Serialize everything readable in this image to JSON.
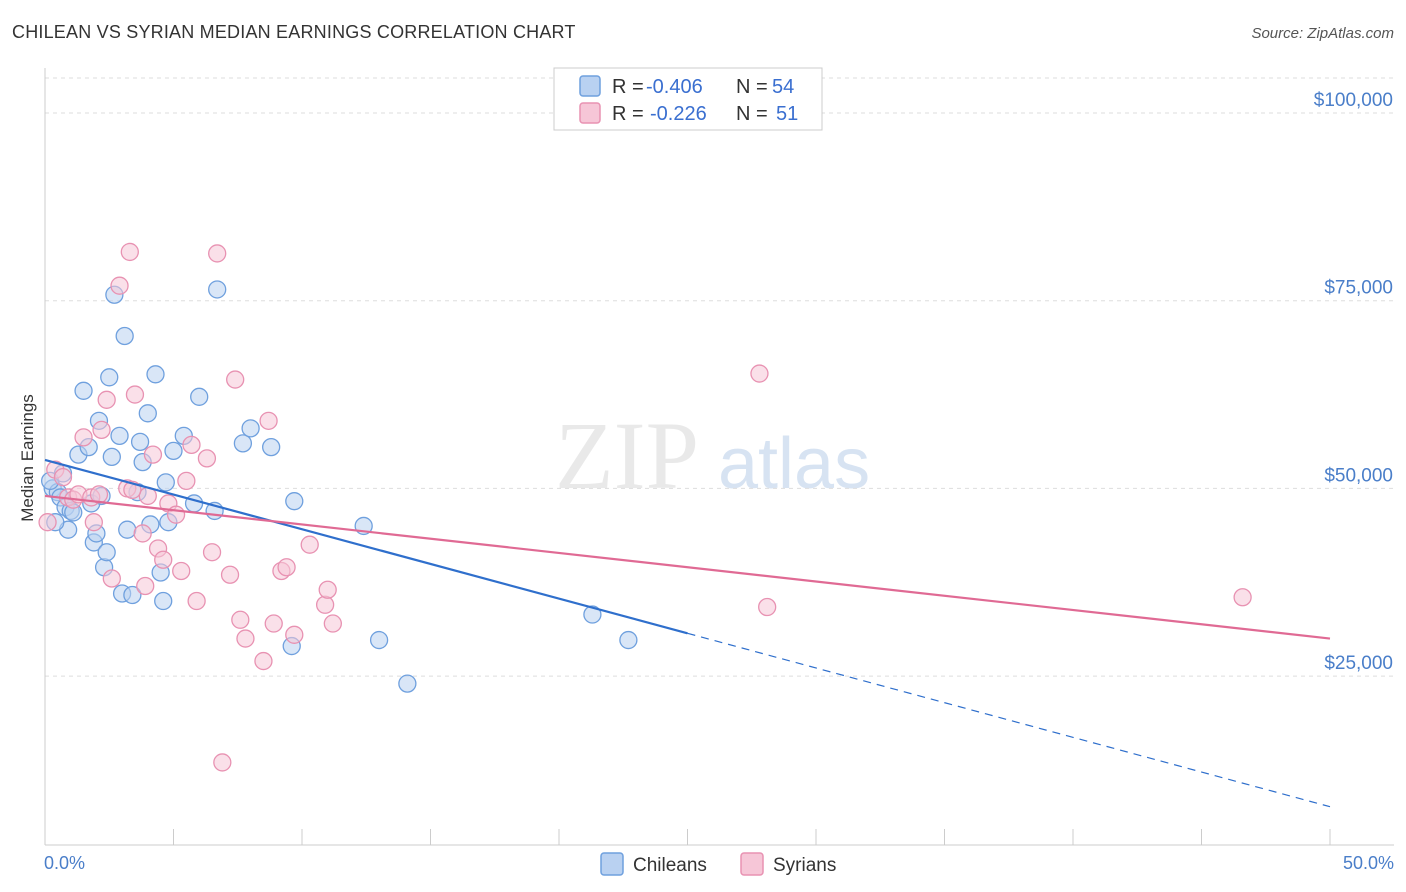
{
  "chart_data": {
    "type": "scatter",
    "title": "CHILEAN VS SYRIAN MEDIAN EARNINGS CORRELATION CHART",
    "source": "Source: ZipAtlas.com",
    "xlabel": "",
    "ylabel": "Median Earnings",
    "xlim": [
      0,
      50
    ],
    "ylim": [
      2500,
      106000
    ],
    "x_tick_labels": [
      "0.0%",
      "50.0%"
    ],
    "y_ticks": [
      {
        "value": 25000,
        "label": "$25,000"
      },
      {
        "value": 50000,
        "label": "$50,000"
      },
      {
        "value": 75000,
        "label": "$75,000"
      },
      {
        "value": 100000,
        "label": "$100,000"
      }
    ],
    "watermark": {
      "part1": "ZIP",
      "part2": "atlas"
    },
    "legend": {
      "rows": [
        {
          "r_label": "R =",
          "r_value": "-0.406",
          "n_label": "N =",
          "n_value": "54",
          "series": "Chileans"
        },
        {
          "r_label": "R =",
          "r_value": "-0.226",
          "n_label": "N =",
          "n_value": "51",
          "series": "Syrians"
        }
      ]
    },
    "series": [
      {
        "name": "Chileans",
        "color": "#6fa0de",
        "fill": "#b9d1f1",
        "line_color": "#2f6fcc",
        "trend": {
          "x0": 0,
          "y0": 53800,
          "x1": 25,
          "y1": 30700,
          "x_dash_end": 50,
          "y_dash_end": 7600
        },
        "points": [
          [
            0.3,
            50000
          ],
          [
            0.5,
            49500
          ],
          [
            0.6,
            48800
          ],
          [
            0.8,
            47500
          ],
          [
            0.9,
            44500
          ],
          [
            1.0,
            47000
          ],
          [
            1.1,
            46800
          ],
          [
            1.3,
            54500
          ],
          [
            1.5,
            63000
          ],
          [
            1.7,
            55500
          ],
          [
            1.8,
            48000
          ],
          [
            1.9,
            42800
          ],
          [
            2.0,
            44000
          ],
          [
            2.1,
            59000
          ],
          [
            2.2,
            49000
          ],
          [
            2.3,
            39500
          ],
          [
            2.4,
            41500
          ],
          [
            2.5,
            64800
          ],
          [
            2.6,
            54200
          ],
          [
            2.7,
            75800
          ],
          [
            2.9,
            57000
          ],
          [
            3.0,
            36000
          ],
          [
            3.1,
            70300
          ],
          [
            3.2,
            44500
          ],
          [
            3.4,
            35800
          ],
          [
            3.6,
            49500
          ],
          [
            3.7,
            56200
          ],
          [
            3.8,
            53500
          ],
          [
            4.0,
            60000
          ],
          [
            4.1,
            45200
          ],
          [
            4.3,
            65200
          ],
          [
            4.5,
            38800
          ],
          [
            4.6,
            35000
          ],
          [
            4.7,
            50800
          ],
          [
            4.8,
            45500
          ],
          [
            5.0,
            55000
          ],
          [
            5.4,
            57000
          ],
          [
            5.8,
            48000
          ],
          [
            6.0,
            62200
          ],
          [
            6.6,
            47000
          ],
          [
            6.7,
            76500
          ],
          [
            7.7,
            56000
          ],
          [
            8.0,
            58000
          ],
          [
            8.8,
            55500
          ],
          [
            9.6,
            29000
          ],
          [
            9.7,
            48300
          ],
          [
            12.4,
            45000
          ],
          [
            13.0,
            29800
          ],
          [
            14.1,
            24000
          ],
          [
            21.3,
            33200
          ],
          [
            22.7,
            29800
          ],
          [
            0.4,
            45500
          ],
          [
            0.2,
            51000
          ],
          [
            0.7,
            52000
          ]
        ]
      },
      {
        "name": "Syrians",
        "color": "#e892b2",
        "fill": "#f6c6d7",
        "line_color": "#e06a94",
        "trend": {
          "x0": 0,
          "y0": 49000,
          "x1": 50,
          "y1": 30000
        },
        "points": [
          [
            0.1,
            45500
          ],
          [
            0.4,
            52500
          ],
          [
            0.7,
            51500
          ],
          [
            0.9,
            48800
          ],
          [
            1.1,
            48500
          ],
          [
            1.3,
            49200
          ],
          [
            1.5,
            56800
          ],
          [
            1.8,
            48800
          ],
          [
            1.9,
            45500
          ],
          [
            2.1,
            49200
          ],
          [
            2.2,
            57800
          ],
          [
            2.4,
            61800
          ],
          [
            2.6,
            38000
          ],
          [
            2.9,
            77000
          ],
          [
            3.2,
            50000
          ],
          [
            3.3,
            81500
          ],
          [
            3.5,
            62500
          ],
          [
            3.8,
            44000
          ],
          [
            3.9,
            37000
          ],
          [
            4.0,
            49000
          ],
          [
            4.2,
            54500
          ],
          [
            4.4,
            42000
          ],
          [
            4.6,
            40500
          ],
          [
            4.8,
            48000
          ],
          [
            5.1,
            46500
          ],
          [
            5.3,
            39000
          ],
          [
            5.5,
            51000
          ],
          [
            5.7,
            55800
          ],
          [
            5.9,
            35000
          ],
          [
            6.3,
            54000
          ],
          [
            6.5,
            41500
          ],
          [
            6.7,
            81300
          ],
          [
            6.9,
            13500
          ],
          [
            7.2,
            38500
          ],
          [
            7.4,
            64500
          ],
          [
            7.6,
            32500
          ],
          [
            7.8,
            30000
          ],
          [
            8.5,
            27000
          ],
          [
            8.7,
            59000
          ],
          [
            8.9,
            32000
          ],
          [
            9.2,
            39000
          ],
          [
            9.4,
            39500
          ],
          [
            9.7,
            30500
          ],
          [
            10.3,
            42500
          ],
          [
            10.9,
            34500
          ],
          [
            11.0,
            36500
          ],
          [
            11.2,
            32000
          ],
          [
            27.8,
            65300
          ],
          [
            28.1,
            34200
          ],
          [
            46.6,
            35500
          ],
          [
            3.4,
            49800
          ]
        ]
      }
    ]
  }
}
